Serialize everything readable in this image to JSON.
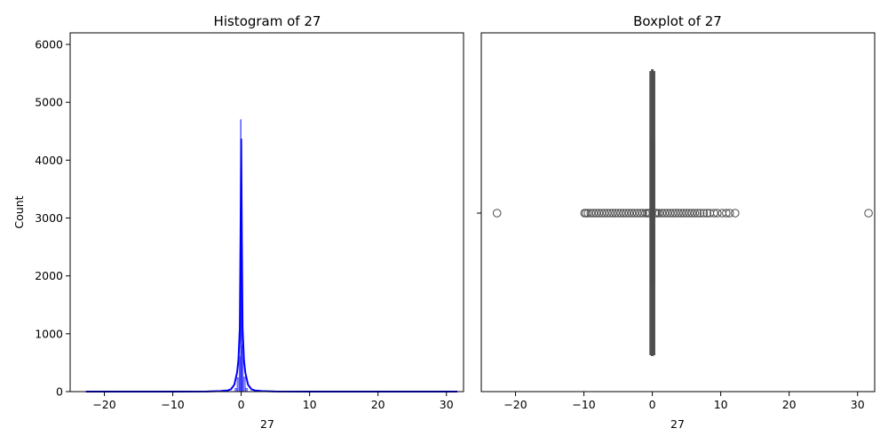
{
  "colors": {
    "hist_fill": "#0000ff",
    "kde_line": "#0000ff",
    "box": "#4d4d4d",
    "axes_frame": "#000000",
    "background": "#ffffff"
  },
  "chart_data": [
    {
      "type": "histogram",
      "title": "Histogram of 27",
      "xlabel": "27",
      "ylabel": "Count",
      "xlim": [
        -25,
        32.5
      ],
      "ylim": [
        0,
        6200
      ],
      "xticks": [
        -20,
        -10,
        0,
        10,
        20,
        30
      ],
      "xtick_labels": [
        "−20",
        "−10",
        "0",
        "10",
        "20",
        "30"
      ],
      "yticks": [
        0,
        1000,
        2000,
        3000,
        4000,
        5000,
        6000
      ],
      "ytick_labels": [
        "0",
        "1000",
        "2000",
        "3000",
        "4000",
        "5000",
        "6000"
      ],
      "grid": false,
      "bins": [
        {
          "x0": -22.7,
          "x1": -0.9,
          "count": 5
        },
        {
          "x0": -0.9,
          "x1": -0.6,
          "count": 60
        },
        {
          "x0": -0.6,
          "x1": -0.3,
          "count": 240
        },
        {
          "x0": -0.3,
          "x1": -0.1,
          "count": 600
        },
        {
          "x0": -0.1,
          "x1": 0.0,
          "count": 4700
        },
        {
          "x0": 0.0,
          "x1": 0.1,
          "count": 3400
        },
        {
          "x0": 0.1,
          "x1": 0.3,
          "count": 800
        },
        {
          "x0": 0.3,
          "x1": 0.6,
          "count": 250
        },
        {
          "x0": 0.6,
          "x1": 0.9,
          "count": 60
        },
        {
          "x0": 0.9,
          "x1": 31.6,
          "count": 5
        }
      ],
      "kde": {
        "x": [
          -22.7,
          -10,
          -5,
          -3,
          -2,
          -1.5,
          -1,
          -0.6,
          -0.4,
          -0.2,
          -0.1,
          0,
          0.1,
          0.2,
          0.4,
          0.6,
          1,
          1.5,
          2,
          3,
          5,
          10,
          31.6
        ],
        "y": [
          0,
          0,
          2,
          10,
          20,
          40,
          120,
          330,
          550,
          1100,
          2600,
          4370,
          2600,
          1100,
          550,
          330,
          120,
          40,
          20,
          10,
          2,
          0,
          0
        ]
      }
    },
    {
      "type": "boxplot",
      "title": "Boxplot of 27",
      "xlabel": "27",
      "xlim": [
        -25,
        32.5
      ],
      "xticks": [
        -20,
        -10,
        0,
        10,
        20,
        30
      ],
      "xtick_labels": [
        "−20",
        "−10",
        "0",
        "10",
        "20",
        "30"
      ],
      "grid": false,
      "box": {
        "whisker_low": -0.3,
        "q1": -0.05,
        "median": 0.0,
        "q3": 0.05,
        "whisker_high": 0.3
      },
      "outliers": [
        -22.7,
        -9.9,
        -9.7,
        -9.4,
        -9.0,
        -8.6,
        -8.2,
        -7.8,
        -7.4,
        -7.0,
        -6.6,
        -6.2,
        -5.8,
        -5.4,
        -5.0,
        -4.6,
        -4.2,
        -3.8,
        -3.4,
        -3.0,
        -2.6,
        -2.2,
        -1.8,
        -1.4,
        -1.0,
        -0.7,
        -0.5,
        -0.4,
        0.4,
        0.5,
        0.7,
        1.0,
        1.4,
        1.8,
        2.2,
        2.6,
        3.0,
        3.4,
        3.8,
        4.2,
        4.6,
        5.0,
        5.4,
        5.8,
        6.2,
        6.6,
        7.0,
        7.5,
        8.0,
        8.4,
        9.0,
        9.5,
        10.2,
        10.8,
        11.3,
        12.1,
        31.6
      ]
    }
  ]
}
